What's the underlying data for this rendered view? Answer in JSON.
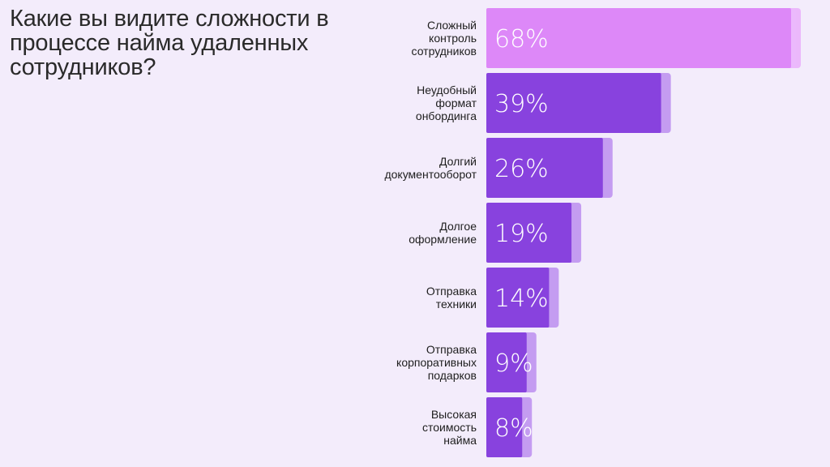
{
  "chart_data": {
    "type": "bar",
    "orientation": "horizontal",
    "title": "Какие вы видите сложности в процессе найма удаленных сотрудников?",
    "categories": [
      "Сложный контроль сотрудников",
      "Неудобный формат онбординга",
      "Долгий документооборот",
      "Долгое оформление",
      "Отправка техники",
      "Отправка корпоративных подарков",
      "Высокая стоимость найма"
    ],
    "category_lines": [
      [
        "Сложный",
        "контроль",
        "сотрудников"
      ],
      [
        "Неудобный",
        "формат",
        "онбординга"
      ],
      [
        "Долгий",
        "документооборот"
      ],
      [
        "Долгое",
        "оформление"
      ],
      [
        "Отправка",
        "техники"
      ],
      [
        "Отправка",
        "корпоративных",
        "подарков"
      ],
      [
        "Высокая",
        "стоимость",
        "найма"
      ]
    ],
    "values": [
      68,
      39,
      26,
      19,
      14,
      9,
      8
    ],
    "value_labels": [
      "68%",
      "39%",
      "26%",
      "19%",
      "14%",
      "9%",
      "8%"
    ],
    "xlim": [
      0,
      70
    ],
    "grid": false,
    "legend": "none",
    "colors": {
      "highlight_bar": "#dd88f8",
      "highlight_shadow": "#ebb8fb",
      "bar": "#8842de",
      "bar_shadow": "#c49cf1",
      "background": "#f3ecfb"
    }
  }
}
